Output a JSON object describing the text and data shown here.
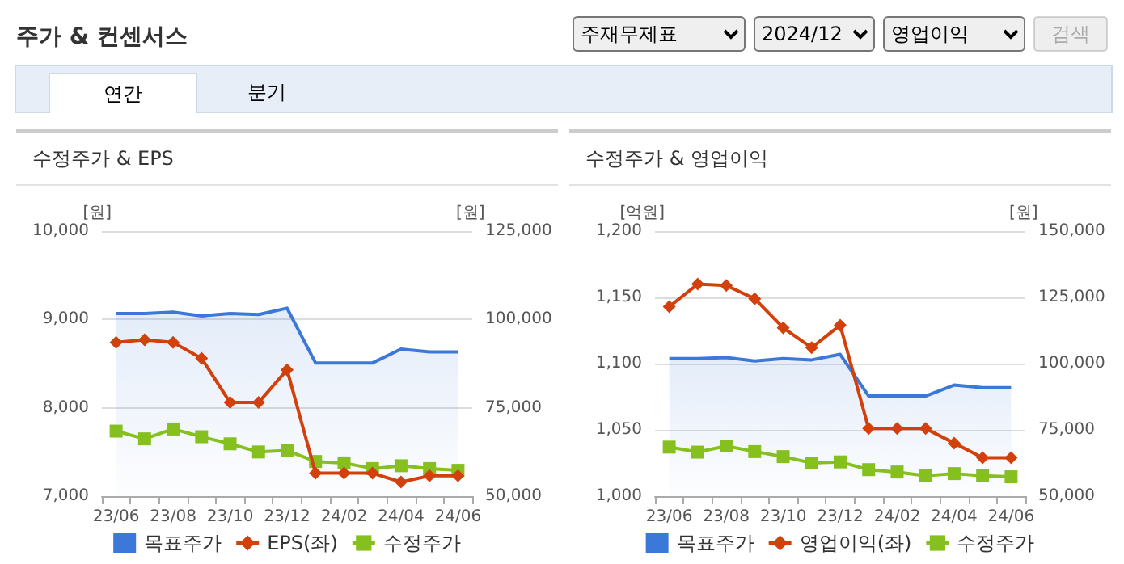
{
  "chart_data": [
    {
      "type": "other",
      "title": "주가 & 컨센서스",
      "annotations": [
        "주재무제표",
        "2024/12",
        "영업이익",
        "검색",
        "연간",
        "분기"
      ]
    },
    {
      "type": "line",
      "title": "수정주가 & EPS",
      "ylabel": "[원]",
      "y2label": "[원]",
      "categories": [
        "23/06",
        null,
        "23/08",
        null,
        "23/10",
        null,
        "23/12",
        null,
        "24/02",
        null,
        "24/04",
        null,
        "24/06"
      ],
      "ylim": [
        7000,
        10000
      ],
      "yticks": [
        {
          "value": 7000,
          "label": "7,000"
        },
        {
          "value": 8000,
          "label": "8,000"
        },
        {
          "value": 9000,
          "label": "9,000"
        },
        {
          "value": 10000,
          "label": "10,000"
        }
      ],
      "y2lim": [
        50000,
        125000
      ],
      "y2ticks": [
        {
          "value": 50000,
          "label": "50,000"
        },
        {
          "value": 75000,
          "label": "75,000"
        },
        {
          "value": 100000,
          "label": "100,000"
        },
        {
          "value": 125000,
          "label": "125,000"
        }
      ],
      "grid": "y",
      "legend": "bottom",
      "series": [
        {
          "name": "목표주가",
          "type": "area",
          "axis": "y2",
          "marker": "none",
          "color": "#3b78d8",
          "values": [
            101700,
            101700,
            102100,
            101000,
            101700,
            101400,
            103200,
            87700,
            87700,
            87700,
            91600,
            90800,
            90800
          ]
        },
        {
          "name": "EPS(좌)",
          "type": "line",
          "marker": "diamond",
          "color": "#d2400c",
          "values": [
            8740,
            8770,
            8740,
            8560,
            8060,
            8060,
            8430,
            7260,
            7260,
            7260,
            7160,
            7230,
            7230
          ]
        },
        {
          "name": "수정주가",
          "type": "line",
          "axis": "y2",
          "marker": "square",
          "color": "#86c01e",
          "values": [
            68400,
            66200,
            69000,
            66800,
            64800,
            62500,
            62900,
            59800,
            59400,
            57800,
            58600,
            57800,
            57300
          ]
        }
      ]
    },
    {
      "type": "line",
      "title": "수정주가 & 영업이익",
      "ylabel": "[억원]",
      "y2label": "[원]",
      "categories": [
        "23/06",
        null,
        "23/08",
        null,
        "23/10",
        null,
        "23/12",
        null,
        "24/02",
        null,
        "24/04",
        null,
        "24/06"
      ],
      "ylim": [
        1000,
        1200
      ],
      "yticks": [
        {
          "value": 1000,
          "label": "1,000"
        },
        {
          "value": 1050,
          "label": "1,050"
        },
        {
          "value": 1100,
          "label": "1,100"
        },
        {
          "value": 1150,
          "label": "1,150"
        },
        {
          "value": 1200,
          "label": "1,200"
        }
      ],
      "y2lim": [
        50000,
        150000
      ],
      "y2ticks": [
        {
          "value": 50000,
          "label": "50,000"
        },
        {
          "value": 75000,
          "label": "75,000"
        },
        {
          "value": 100000,
          "label": "100,000"
        },
        {
          "value": 125000,
          "label": "125,000"
        },
        {
          "value": 150000,
          "label": "150,000"
        }
      ],
      "grid": "y",
      "legend": "bottom",
      "series": [
        {
          "name": "목표주가",
          "type": "area",
          "axis": "y2",
          "marker": "none",
          "color": "#3b78d8",
          "values": [
            101900,
            101900,
            102300,
            101000,
            101900,
            101400,
            103500,
            87800,
            87800,
            87800,
            91900,
            90900,
            90900
          ]
        },
        {
          "name": "영업이익(좌)",
          "type": "line",
          "marker": "diamond",
          "color": "#d2400c",
          "values": [
            1143,
            1160,
            1159,
            1149,
            1127,
            1112,
            1129,
            1051,
            1051,
            1051,
            1040,
            1029,
            1029
          ]
        },
        {
          "name": "수정주가",
          "type": "line",
          "axis": "y2",
          "marker": "square",
          "color": "#86c01e",
          "values": [
            68500,
            66600,
            68900,
            66800,
            64900,
            62500,
            62900,
            60000,
            59100,
            57700,
            58500,
            57700,
            57300
          ]
        }
      ]
    }
  ]
}
